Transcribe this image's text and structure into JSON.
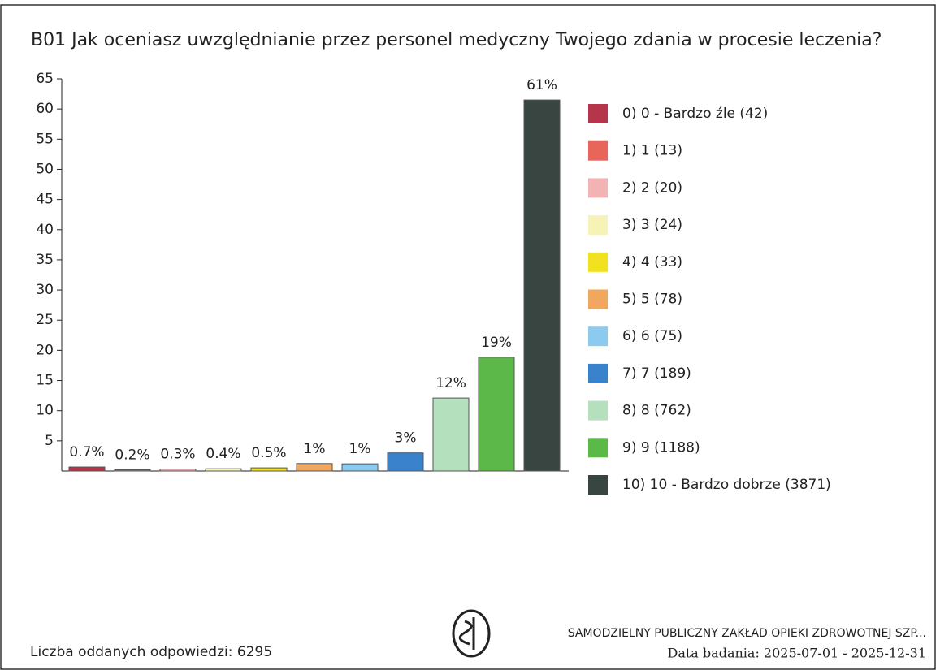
{
  "chart_data": {
    "type": "bar",
    "title": "B01 Jak oceniasz uwzględnianie przez personel medyczny Twojego zdania w procesie leczenia?",
    "categories": [
      "0) 0 - Bardzo źle (42)",
      "1) 1 (13)",
      "2) 2 (20)",
      "3) 3 (24)",
      "4) 4 (33)",
      "5) 5 (78)",
      "6) 6 (75)",
      "7) 7 (189)",
      "8) 8 (762)",
      "9) 9 (1188)",
      "10) 10 - Bardzo dobrze (3871)"
    ],
    "values": [
      0.667,
      0.207,
      0.318,
      0.381,
      0.524,
      1.239,
      1.191,
      3.0,
      12.1,
      18.87,
      61.49
    ],
    "value_labels": [
      "0.7%",
      "0.2%",
      "0.3%",
      "0.4%",
      "0.5%",
      "1%",
      "1%",
      "3%",
      "12%",
      "19%",
      "61%"
    ],
    "colors": [
      "#b5354a",
      "#e8655a",
      "#f2b3b5",
      "#f7f2b8",
      "#f2e11e",
      "#f0a860",
      "#8ccbef",
      "#3b82cc",
      "#b5e0bd",
      "#5cb848",
      "#394540"
    ],
    "ylim": [
      0,
      65
    ],
    "yticks": [
      5,
      10,
      15,
      20,
      25,
      30,
      35,
      40,
      45,
      50,
      55,
      60,
      65
    ],
    "legend": "right",
    "footer_left": "Liczba oddanych odpowiedzi: 6295",
    "footer_org": "SAMODZIELNY PUBLICZNY ZAKŁAD OPIEKI ZDROWOTNEJ SZP...",
    "footer_date": "Data badania: 2025-07-01 - 2025-12-31"
  }
}
